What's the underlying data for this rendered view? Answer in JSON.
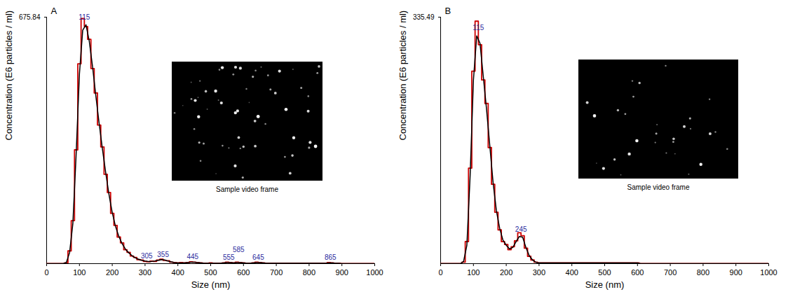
{
  "chart_data": [
    {
      "type": "line",
      "title": "A",
      "xlabel": "Size (nm)",
      "ylabel": "Concentration (E6 particles / ml)",
      "xlim": [
        0,
        1000
      ],
      "xticks": [
        0,
        100,
        200,
        300,
        400,
        500,
        600,
        700,
        800,
        900,
        1000
      ],
      "ylim": [
        0,
        675.84
      ],
      "yticks": [
        675.84
      ],
      "grid": false,
      "x": [
        0,
        10,
        20,
        30,
        40,
        50,
        60,
        70,
        80,
        90,
        100,
        110,
        120,
        130,
        140,
        150,
        160,
        170,
        180,
        190,
        200,
        210,
        220,
        230,
        240,
        250,
        260,
        270,
        280,
        290,
        300,
        310,
        320,
        330,
        340,
        350,
        360,
        370,
        380,
        390,
        400,
        410,
        420,
        430,
        440,
        450,
        460,
        470,
        480,
        490,
        500,
        510,
        520,
        530,
        540,
        550,
        560,
        570,
        580,
        590,
        600,
        610,
        620,
        630,
        640,
        650,
        660,
        670,
        680,
        690,
        700,
        710,
        720,
        730,
        740,
        750,
        760,
        770,
        780,
        790,
        800,
        810,
        820,
        830,
        840,
        850,
        860,
        870,
        880,
        890,
        900,
        910,
        920,
        930,
        940,
        950,
        960,
        970,
        980,
        990,
        1000
      ],
      "series": [
        {
          "type": "step",
          "color": "#cc0000",
          "line_style": "solid",
          "values": [
            0,
            0,
            0,
            0,
            0,
            0,
            2,
            35,
            118,
            312,
            548,
            672,
            650,
            615,
            535,
            468,
            380,
            320,
            245,
            195,
            138,
            105,
            73,
            57,
            38,
            31,
            21,
            17,
            11,
            10,
            6,
            5,
            7,
            6,
            10,
            12,
            9,
            8,
            4,
            3,
            2,
            3,
            2,
            3,
            5,
            4,
            3,
            2,
            1,
            1,
            2,
            1,
            1,
            1,
            2,
            4,
            3,
            2,
            4,
            3,
            2,
            1,
            1,
            2,
            4,
            3,
            2,
            1,
            1,
            1,
            1,
            1,
            1,
            1,
            1,
            1,
            1,
            1,
            1,
            1,
            1,
            1,
            1,
            1,
            1,
            1,
            3,
            2,
            1,
            1,
            0,
            0,
            0,
            0,
            0,
            0,
            0,
            0,
            0,
            0,
            0
          ]
        },
        {
          "type": "line",
          "color": "#000000",
          "line_style": "solid",
          "values": [
            0,
            0,
            0,
            0,
            0,
            0,
            3,
            30,
            110,
            300,
            520,
            640,
            655,
            610,
            540,
            460,
            385,
            315,
            250,
            190,
            140,
            102,
            75,
            55,
            40,
            30,
            22,
            16,
            12,
            9,
            7,
            6,
            6,
            7,
            9,
            11,
            10,
            7,
            5,
            3,
            2,
            2,
            2,
            3,
            4,
            4,
            3,
            2,
            1,
            1,
            1,
            1,
            1,
            1,
            2,
            3,
            3,
            2,
            3,
            3,
            2,
            1,
            1,
            2,
            3,
            3,
            2,
            1,
            1,
            1,
            1,
            1,
            1,
            1,
            1,
            1,
            1,
            1,
            1,
            1,
            1,
            1,
            1,
            1,
            1,
            1,
            2,
            2,
            1,
            1,
            0,
            0,
            0,
            0,
            0,
            0,
            0,
            0,
            0,
            0,
            0
          ]
        }
      ],
      "peak_labels": [
        115,
        305,
        355,
        445,
        555,
        585,
        645,
        865
      ],
      "inset": {
        "caption": "Sample video frame"
      }
    },
    {
      "type": "line",
      "title": "B",
      "xlabel": "Size (nm)",
      "ylabel": "Concentration (E6 particles / ml)",
      "xlim": [
        0,
        1000
      ],
      "xticks": [
        0,
        100,
        200,
        300,
        400,
        500,
        600,
        700,
        800,
        900,
        1000
      ],
      "ylim": [
        0,
        335.49
      ],
      "yticks": [
        335.49
      ],
      "grid": false,
      "x": [
        0,
        10,
        20,
        30,
        40,
        50,
        60,
        70,
        80,
        90,
        100,
        110,
        120,
        130,
        140,
        150,
        160,
        170,
        180,
        190,
        200,
        210,
        220,
        230,
        240,
        250,
        260,
        270,
        280,
        290,
        300,
        310,
        320,
        330,
        340,
        350,
        360,
        370,
        380,
        390,
        400,
        410,
        420,
        430,
        440,
        450,
        460,
        470,
        480,
        490,
        500,
        510,
        520,
        530,
        540,
        550,
        560,
        570,
        580,
        590,
        600,
        610,
        620,
        630,
        640,
        650,
        660,
        670,
        680,
        690,
        700,
        710,
        720,
        730,
        740,
        750,
        760,
        770,
        780,
        790,
        800,
        810,
        820,
        830,
        840,
        850,
        860,
        870,
        880,
        890,
        900,
        910,
        920,
        930,
        940,
        950,
        960,
        970,
        980,
        990,
        1000
      ],
      "series": [
        {
          "type": "step",
          "color": "#cc0000",
          "line_style": "solid",
          "values": [
            0,
            0,
            0,
            0,
            0,
            0,
            0,
            2,
            30,
            130,
            262,
            330,
            298,
            250,
            218,
            158,
            108,
            70,
            46,
            30,
            26,
            19,
            23,
            31,
            42,
            38,
            21,
            10,
            5,
            2,
            1,
            1,
            1,
            1,
            1,
            1,
            1,
            1,
            1,
            1,
            1,
            1,
            1,
            1,
            1,
            1,
            1,
            1,
            1,
            1,
            1,
            1,
            1,
            1,
            1,
            1,
            1,
            1,
            1,
            1,
            1,
            0,
            0,
            0,
            0,
            0,
            0,
            0,
            0,
            0,
            0,
            0,
            0,
            0,
            0,
            0,
            0,
            0,
            0,
            0,
            0,
            0,
            0,
            0,
            0,
            0,
            0,
            0,
            0,
            0,
            0,
            0,
            0,
            0,
            0,
            0,
            0,
            0,
            0,
            0,
            0
          ]
        },
        {
          "type": "line",
          "color": "#000000",
          "line_style": "solid",
          "values": [
            0,
            0,
            0,
            0,
            0,
            0,
            0,
            3,
            25,
            120,
            250,
            310,
            300,
            255,
            210,
            160,
            110,
            72,
            48,
            32,
            25,
            20,
            22,
            30,
            37,
            36,
            22,
            11,
            5,
            2,
            1,
            1,
            1,
            1,
            1,
            1,
            1,
            1,
            1,
            1,
            1,
            1,
            1,
            1,
            1,
            1,
            1,
            1,
            1,
            1,
            1,
            1,
            1,
            1,
            1,
            1,
            1,
            1,
            1,
            1,
            1,
            0,
            0,
            0,
            0,
            0,
            0,
            0,
            0,
            0,
            0,
            0,
            0,
            0,
            0,
            0,
            0,
            0,
            0,
            0,
            0,
            0,
            0,
            0,
            0,
            0,
            0,
            0,
            0,
            0,
            0,
            0,
            0,
            0,
            0,
            0,
            0,
            0,
            0,
            0,
            0
          ]
        }
      ],
      "peak_labels": [
        115,
        245
      ],
      "inset": {
        "caption": "Sample video frame"
      }
    }
  ]
}
